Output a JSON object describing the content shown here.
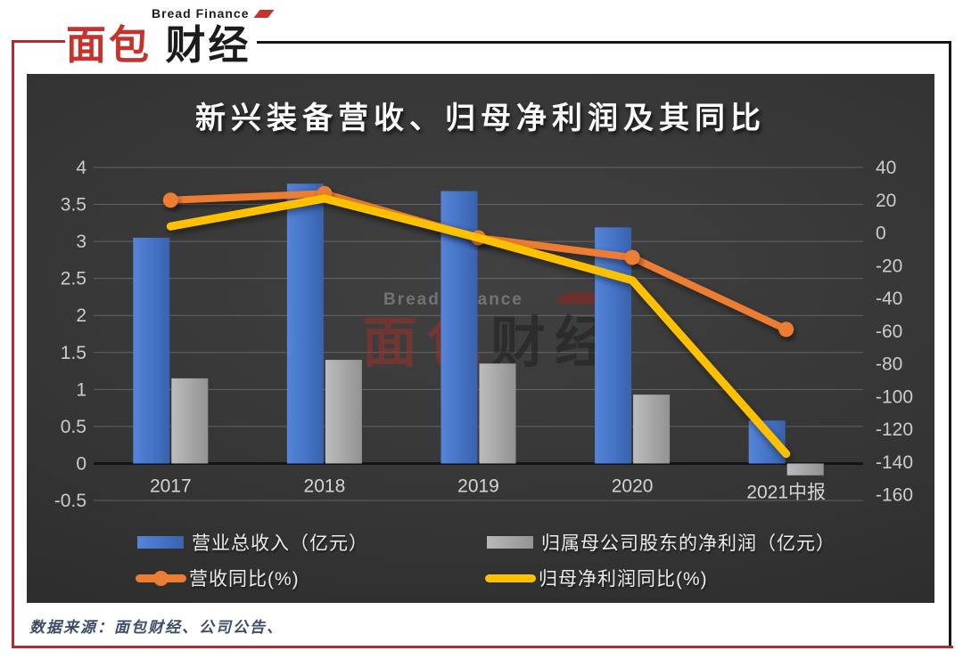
{
  "header": {
    "logo_cn_red": "面包",
    "logo_cn_dark": "财经",
    "logo_en": "Bread Finance"
  },
  "watermark": {
    "en": "Bread Finance",
    "cn_red": "面包",
    "cn_dark": "财经"
  },
  "footer": {
    "source": "数据来源：面包财经、公司公告、"
  },
  "chart_data": {
    "type": "combo: grouped bars (left axis) + lines (right axis)",
    "title": "新兴装备营收、归母净利润及其同比",
    "categories": [
      "2017",
      "2018",
      "2019",
      "2020",
      "2021中报"
    ],
    "series": [
      {
        "name": "营业总收入（亿元）",
        "type": "bar",
        "axis": "left",
        "color": "#4472C4",
        "marker": false,
        "values": [
          3.05,
          3.78,
          3.68,
          3.19,
          0.58
        ]
      },
      {
        "name": "归属母公司股东的净利润（亿元）",
        "type": "bar",
        "axis": "left",
        "color": "#A5A5A5",
        "marker": false,
        "values": [
          1.15,
          1.4,
          1.35,
          0.93,
          -0.16
        ]
      },
      {
        "name": "营收同比(%)",
        "type": "line",
        "axis": "right",
        "color": "#ED7D31",
        "marker": true,
        "values": [
          20,
          24,
          -3,
          -15,
          -59
        ]
      },
      {
        "name": "归母净利润同比(%)",
        "type": "line",
        "axis": "right",
        "color": "#FFC000",
        "marker": false,
        "values": [
          4,
          21,
          -3,
          -29,
          -135
        ]
      }
    ],
    "left_axis": {
      "min": -0.5,
      "max": 4,
      "tick_labels": [
        "4",
        "3.5",
        "3",
        "2.5",
        "2",
        "1.5",
        "1",
        "0.5",
        "0",
        "-0.5"
      ]
    },
    "right_axis": {
      "min": -160,
      "max": 40,
      "tick_labels": [
        "40",
        "20",
        "0",
        "-20",
        "-40",
        "-60",
        "-80",
        "-100",
        "-120",
        "-140",
        "-160"
      ]
    },
    "legend_position": "bottom",
    "grid": true,
    "background": "dark",
    "colors": {
      "panel_dark": "#343434",
      "grid_line": "rgba(255,255,255,0.22)",
      "zero_axis": "#141414",
      "tick_text": "#cccccc",
      "frame_red": "#bd242b",
      "frame_black": "#161616"
    }
  }
}
